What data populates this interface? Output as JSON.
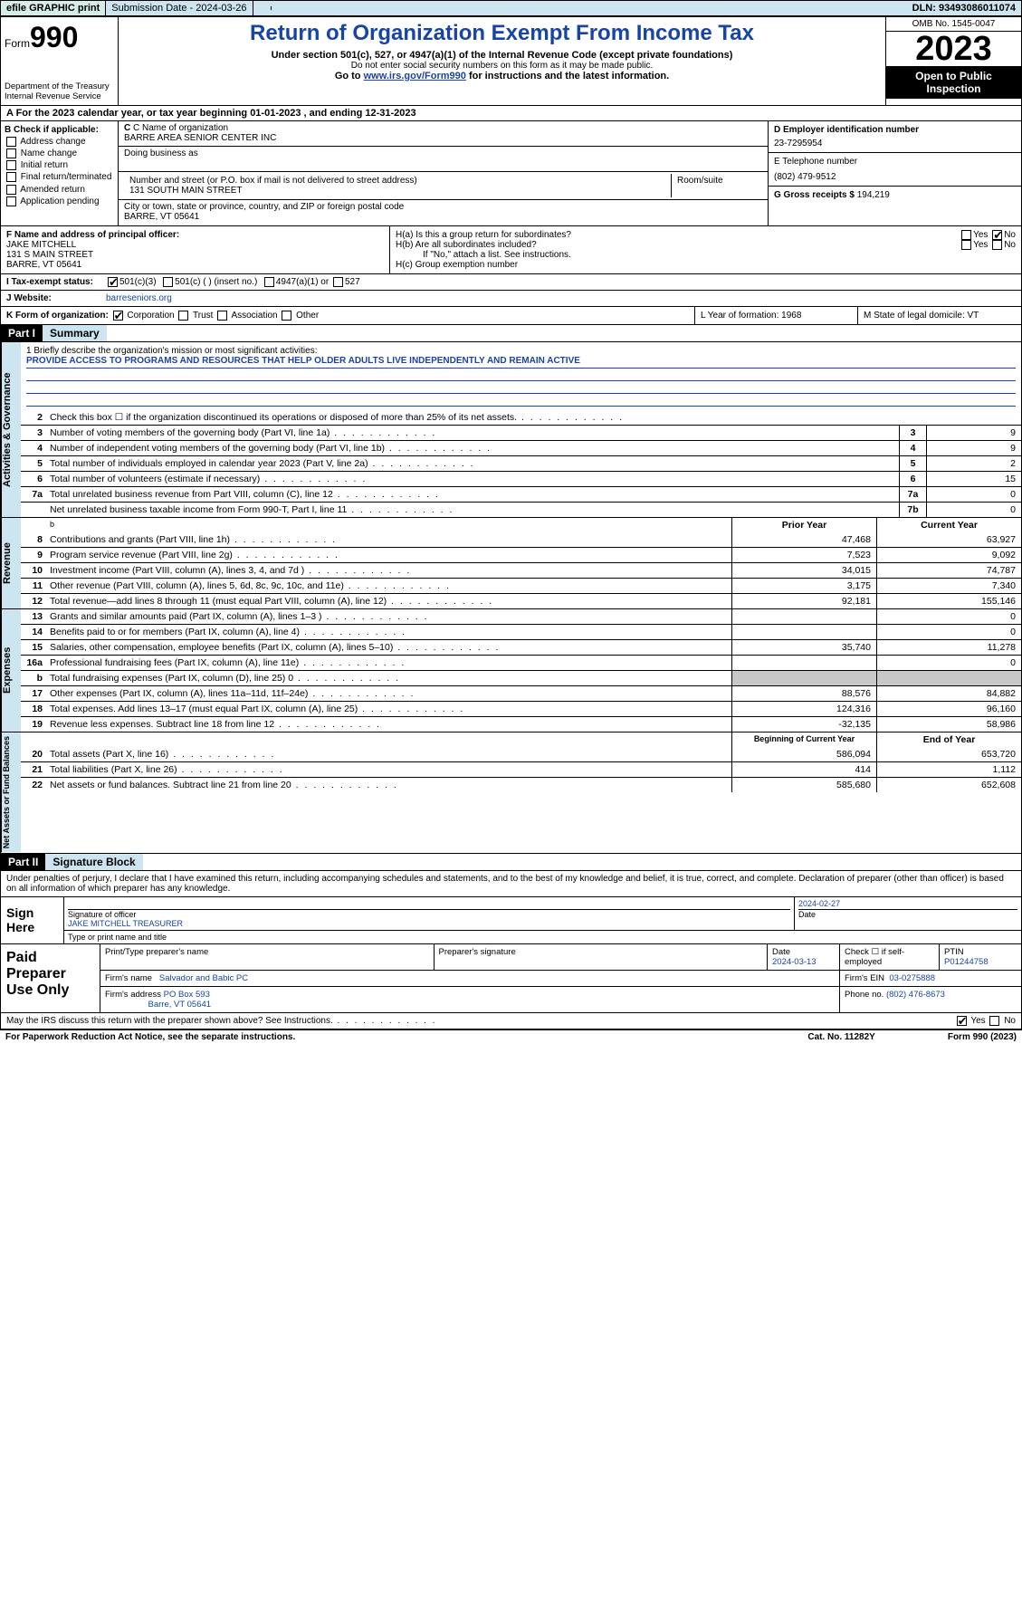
{
  "topbar": {
    "efile": "efile GRAPHIC print",
    "submission": "Submission Date - 2024-03-26",
    "dln": "DLN: 93493086011074"
  },
  "header": {
    "form_prefix": "Form",
    "form_num": "990",
    "dept": "Department of the Treasury Internal Revenue Service",
    "title": "Return of Organization Exempt From Income Tax",
    "sub1": "Under section 501(c), 527, or 4947(a)(1) of the Internal Revenue Code (except private foundations)",
    "sub2": "Do not enter social security numbers on this form as it may be made public.",
    "sub3_pre": "Go to ",
    "sub3_link": "www.irs.gov/Form990",
    "sub3_post": " for instructions and the latest information.",
    "omb": "OMB No. 1545-0047",
    "year": "2023",
    "open": "Open to Public Inspection"
  },
  "row_a": "A For the 2023 calendar year, or tax year beginning 01-01-2023   , and ending 12-31-2023",
  "col_b": {
    "hdr": "B Check if applicable:",
    "addr": "Address change",
    "name": "Name change",
    "init": "Initial return",
    "final": "Final return/terminated",
    "amend": "Amended return",
    "app": "Application pending"
  },
  "col_c": {
    "name_lbl": "C Name of organization",
    "name": "BARRE AREA SENIOR CENTER INC",
    "dba_lbl": "Doing business as",
    "street_lbl": "Number and street (or P.O. box if mail is not delivered to street address)",
    "room_lbl": "Room/suite",
    "street": "131 SOUTH MAIN STREET",
    "city_lbl": "City or town, state or province, country, and ZIP or foreign postal code",
    "city": "BARRE, VT  05641"
  },
  "col_de": {
    "d_lbl": "D Employer identification number",
    "d": "23-7295954",
    "e_lbl": "E Telephone number",
    "e": "(802) 479-9512",
    "g_lbl": "G Gross receipts $",
    "g": "194,219"
  },
  "f": {
    "lbl": "F  Name and address of principal officer:",
    "name": "JAKE MITCHELL",
    "street": "131 S MAIN STREET",
    "city": "BARRE, VT  05641"
  },
  "h": {
    "a": "H(a)  Is this a group return for subordinates?",
    "b": "H(b)  Are all subordinates included?",
    "b2": "If \"No,\" attach a list. See instructions.",
    "c": "H(c)  Group exemption number"
  },
  "row_i": {
    "lbl": "I  Tax-exempt status:",
    "o1": "501(c)(3)",
    "o2": "501(c) (  ) (insert no.)",
    "o3": "4947(a)(1) or",
    "o4": "527"
  },
  "row_j": {
    "lbl": "J  Website:",
    "val": "barreseniors.org"
  },
  "row_k": {
    "lbl": "K Form of organization:",
    "corp": "Corporation",
    "trust": "Trust",
    "assoc": "Association",
    "other": "Other"
  },
  "row_l": "L Year of formation: 1968",
  "row_m": "M State of legal domicile: VT",
  "part1": {
    "hdr": "Part I",
    "title": "Summary"
  },
  "mission": {
    "lbl": "1  Briefly describe the organization's mission or most significant activities:",
    "txt": "PROVIDE ACCESS TO PROGRAMS AND RESOURCES THAT HELP OLDER ADULTS LIVE INDEPENDENTLY AND REMAIN ACTIVE"
  },
  "gov_lines": [
    {
      "n": "2",
      "t": "Check this box ☐  if the organization discontinued its operations or disposed of more than 25% of its net assets.",
      "b": "",
      "v": ""
    },
    {
      "n": "3",
      "t": "Number of voting members of the governing body (Part VI, line 1a)",
      "b": "3",
      "v": "9"
    },
    {
      "n": "4",
      "t": "Number of independent voting members of the governing body (Part VI, line 1b)",
      "b": "4",
      "v": "9"
    },
    {
      "n": "5",
      "t": "Total number of individuals employed in calendar year 2023 (Part V, line 2a)",
      "b": "5",
      "v": "2"
    },
    {
      "n": "6",
      "t": "Total number of volunteers (estimate if necessary)",
      "b": "6",
      "v": "15"
    },
    {
      "n": "7a",
      "t": "Total unrelated business revenue from Part VIII, column (C), line 12",
      "b": "7a",
      "v": "0"
    },
    {
      "n": "",
      "t": "Net unrelated business taxable income from Form 990-T, Part I, line 11",
      "b": "7b",
      "v": "0"
    }
  ],
  "rev_hdr": {
    "prior": "Prior Year",
    "curr": "Current Year"
  },
  "rev_lines": [
    {
      "n": "8",
      "t": "Contributions and grants (Part VIII, line 1h)",
      "p": "47,468",
      "c": "63,927"
    },
    {
      "n": "9",
      "t": "Program service revenue (Part VIII, line 2g)",
      "p": "7,523",
      "c": "9,092"
    },
    {
      "n": "10",
      "t": "Investment income (Part VIII, column (A), lines 3, 4, and 7d )",
      "p": "34,015",
      "c": "74,787"
    },
    {
      "n": "11",
      "t": "Other revenue (Part VIII, column (A), lines 5, 6d, 8c, 9c, 10c, and 11e)",
      "p": "3,175",
      "c": "7,340"
    },
    {
      "n": "12",
      "t": "Total revenue—add lines 8 through 11 (must equal Part VIII, column (A), line 12)",
      "p": "92,181",
      "c": "155,146"
    }
  ],
  "exp_lines": [
    {
      "n": "13",
      "t": "Grants and similar amounts paid (Part IX, column (A), lines 1–3 )",
      "p": "",
      "c": "0"
    },
    {
      "n": "14",
      "t": "Benefits paid to or for members (Part IX, column (A), line 4)",
      "p": "",
      "c": "0"
    },
    {
      "n": "15",
      "t": "Salaries, other compensation, employee benefits (Part IX, column (A), lines 5–10)",
      "p": "35,740",
      "c": "11,278"
    },
    {
      "n": "16a",
      "t": "Professional fundraising fees (Part IX, column (A), line 11e)",
      "p": "",
      "c": "0"
    },
    {
      "n": "b",
      "t": "Total fundraising expenses (Part IX, column (D), line 25) 0",
      "p": "GRAY",
      "c": "GRAY"
    },
    {
      "n": "17",
      "t": "Other expenses (Part IX, column (A), lines 11a–11d, 11f–24e)",
      "p": "88,576",
      "c": "84,882"
    },
    {
      "n": "18",
      "t": "Total expenses. Add lines 13–17 (must equal Part IX, column (A), line 25)",
      "p": "124,316",
      "c": "96,160"
    },
    {
      "n": "19",
      "t": "Revenue less expenses. Subtract line 18 from line 12",
      "p": "-32,135",
      "c": "58,986"
    }
  ],
  "na_hdr": {
    "prior": "Beginning of Current Year",
    "curr": "End of Year"
  },
  "na_lines": [
    {
      "n": "20",
      "t": "Total assets (Part X, line 16)",
      "p": "586,094",
      "c": "653,720"
    },
    {
      "n": "21",
      "t": "Total liabilities (Part X, line 26)",
      "p": "414",
      "c": "1,112"
    },
    {
      "n": "22",
      "t": "Net assets or fund balances. Subtract line 21 from line 20",
      "p": "585,680",
      "c": "652,608"
    }
  ],
  "vtabs": {
    "gov": "Activities & Governance",
    "rev": "Revenue",
    "exp": "Expenses",
    "na": "Net Assets or Fund Balances"
  },
  "part2": {
    "hdr": "Part II",
    "title": "Signature Block"
  },
  "sig_decl": "Under penalties of perjury, I declare that I have examined this return, including accompanying schedules and statements, and to the best of my knowledge and belief, it is true, correct, and complete. Declaration of preparer (other than officer) is based on all information of which preparer has any knowledge.",
  "sign": {
    "lbl": "Sign Here",
    "sig_lbl": "Signature of officer",
    "name": "JAKE MITCHELL  TREASURER",
    "type_lbl": "Type or print name and title",
    "date_lbl": "Date",
    "date": "2024-02-27"
  },
  "paid": {
    "lbl": "Paid Preparer Use Only",
    "r1": {
      "c1": "Print/Type preparer's name",
      "c2": "Preparer's signature",
      "c3": "Date",
      "c3v": "2024-03-13",
      "c4_lbl": "Check ☐  if self-employed",
      "c5_lbl": "PTIN",
      "c5": "P01244758"
    },
    "r2": {
      "c1_lbl": "Firm's name",
      "c1": "Salvador and Babic PC",
      "c2_lbl": "Firm's EIN",
      "c2": "03-0275888"
    },
    "r3": {
      "c1_lbl": "Firm's address",
      "c1": "PO Box 593",
      "c1b": "Barre, VT  05641",
      "c2_lbl": "Phone no.",
      "c2": "(802) 476-8673"
    }
  },
  "footer": {
    "discuss": "May the IRS discuss this return with the preparer shown above? See Instructions.",
    "yes": "Yes",
    "no": "No",
    "pra": "For Paperwork Reduction Act Notice, see the separate instructions.",
    "cat": "Cat. No. 11282Y",
    "form": "Form 990 (2023)"
  }
}
